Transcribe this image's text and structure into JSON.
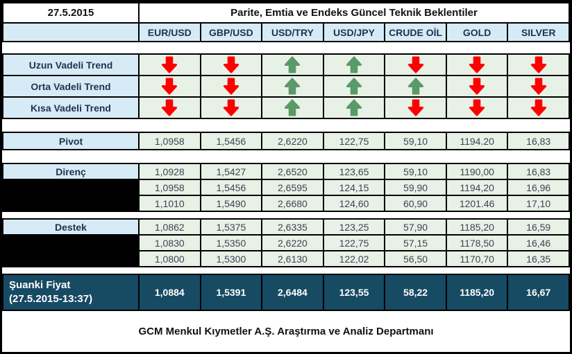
{
  "header": {
    "date": "27.5.2015",
    "title": "Parite, Emtia ve Endeks Güncel Teknik Beklentiler",
    "columns": [
      "EUR/USD",
      "GBP/USD",
      "USD/TRY",
      "USD/JPY",
      "CRUDE OİL",
      "GOLD",
      "SILVER"
    ]
  },
  "trends": {
    "rows": [
      {
        "label": "Uzun Vadeli Trend",
        "arrows": [
          "down",
          "down",
          "up",
          "up",
          "down",
          "down",
          "down"
        ]
      },
      {
        "label": "Orta Vadeli Trend",
        "arrows": [
          "down",
          "down",
          "up",
          "up",
          "up",
          "down",
          "down"
        ]
      },
      {
        "label": "Kısa Vadeli Trend",
        "arrows": [
          "down",
          "down",
          "up",
          "up",
          "down",
          "down",
          "down"
        ]
      }
    ]
  },
  "pivot": {
    "label": "Pivot",
    "values": [
      "1,0958",
      "1,5456",
      "2,6220",
      "122,75",
      "59,10",
      "1194.20",
      "16,83"
    ]
  },
  "resistance": {
    "label": "Direnç",
    "rows": [
      [
        "1,0928",
        "1,5427",
        "2,6520",
        "123,65",
        "59,10",
        "1190,00",
        "16,83"
      ],
      [
        "1,0958",
        "1,5456",
        "2,6595",
        "124,15",
        "59,90",
        "1194,20",
        "16,96"
      ],
      [
        "1,1010",
        "1,5490",
        "2,6680",
        "124,60",
        "60,90",
        "1201.46",
        "17,10"
      ]
    ]
  },
  "support": {
    "label": "Destek",
    "rows": [
      [
        "1,0862",
        "1,5375",
        "2,6335",
        "123,25",
        "57,90",
        "1185,20",
        "16,59"
      ],
      [
        "1,0830",
        "1,5350",
        "2,6220",
        "122,75",
        "57,15",
        "1178,50",
        "16,46"
      ],
      [
        "1,0800",
        "1,5300",
        "2,6130",
        "122,02",
        "56,50",
        "1170,70",
        "16,35"
      ]
    ]
  },
  "current": {
    "label_line1": "Şuanki Fiyat",
    "label_line2": "(27.5.2015-13:37)",
    "values": [
      "1,0884",
      "1,5391",
      "2,6484",
      "123,55",
      "58,22",
      "1185,20",
      "16,67"
    ]
  },
  "footer": {
    "text": "GCM Menkul Kıymetler A.Ş. Araştırma ve Analiz Departmanı"
  },
  "colors": {
    "trend_up": "#5A9A69",
    "trend_down": "#FE0000",
    "header_bg": "#D6EBF5",
    "cell_bg": "#E8F1E6",
    "current_bg": "#174A63",
    "value_text": "#3F4254"
  }
}
